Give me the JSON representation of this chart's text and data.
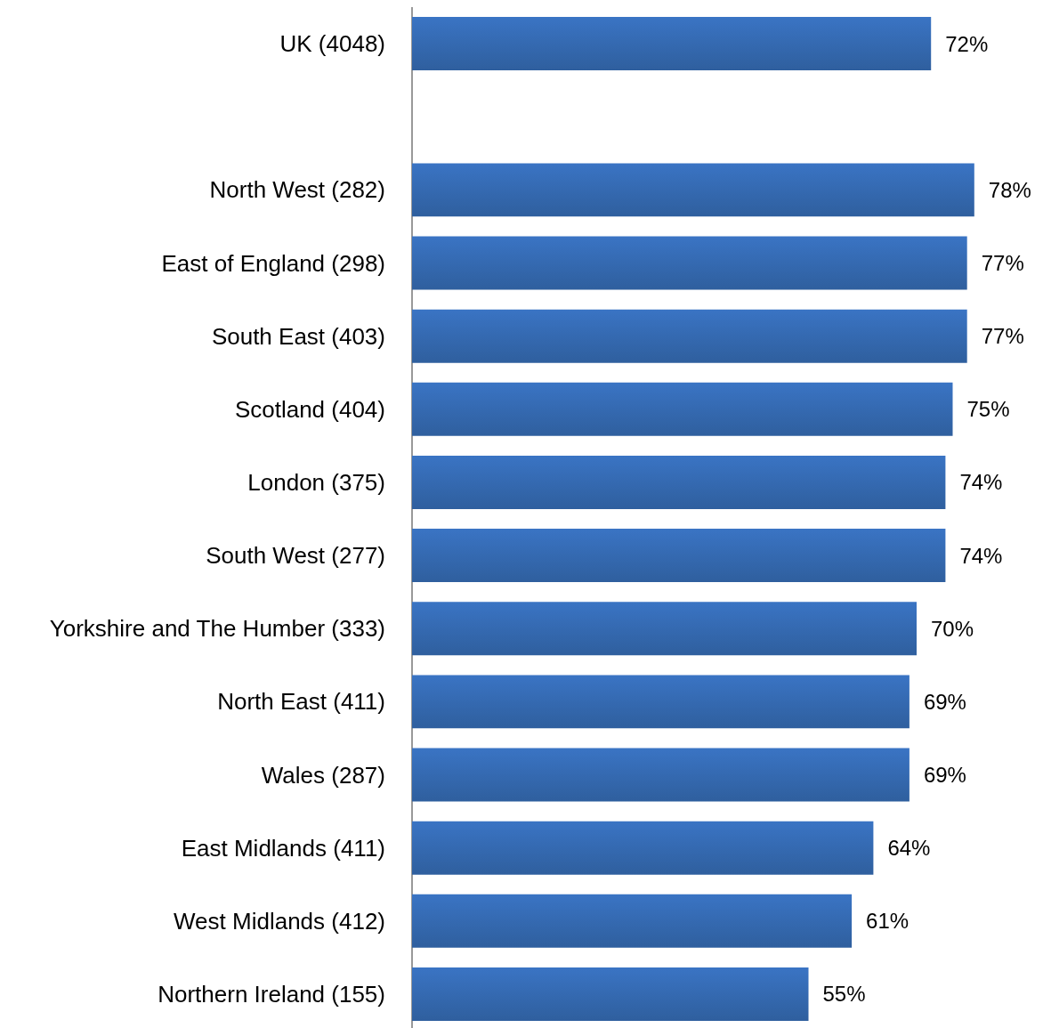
{
  "chart_data": {
    "type": "bar",
    "orientation": "horizontal",
    "categories": [
      "UK (4048)",
      null,
      "North West (282)",
      "East of England (298)",
      "South East (403)",
      "Scotland (404)",
      "London (375)",
      "South West (277)",
      "Yorkshire and The Humber (333)",
      "North East (411)",
      "Wales (287)",
      "East Midlands (411)",
      "West Midlands (412)",
      "Northern Ireland (155)"
    ],
    "values": [
      72,
      null,
      78,
      77,
      77,
      75,
      74,
      74,
      70,
      69,
      69,
      64,
      61,
      55
    ],
    "value_labels": [
      "72%",
      null,
      "78%",
      "77%",
      "77%",
      "75%",
      "74%",
      "74%",
      "70%",
      "69%",
      "69%",
      "64%",
      "61%",
      "55%"
    ],
    "color": "#3a74c4"
  }
}
